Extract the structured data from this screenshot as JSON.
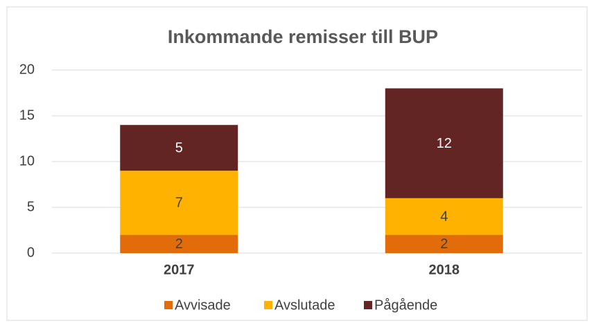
{
  "chart_data": {
    "type": "stacked_bar",
    "title": "Inkommande remisser till BUP",
    "categories": [
      "2017",
      "2018"
    ],
    "series": [
      {
        "name": "Avvisade",
        "color": "#e36c0a",
        "values": [
          2,
          2
        ]
      },
      {
        "name": "Avslutade",
        "color": "#ffb300",
        "values": [
          7,
          4
        ]
      },
      {
        "name": "Pågående",
        "color": "#632523",
        "values": [
          5,
          12
        ]
      }
    ],
    "ylim": [
      0,
      20
    ],
    "yticks": [
      0,
      5,
      10,
      15,
      20
    ],
    "grid": true,
    "legend": "bottom"
  }
}
